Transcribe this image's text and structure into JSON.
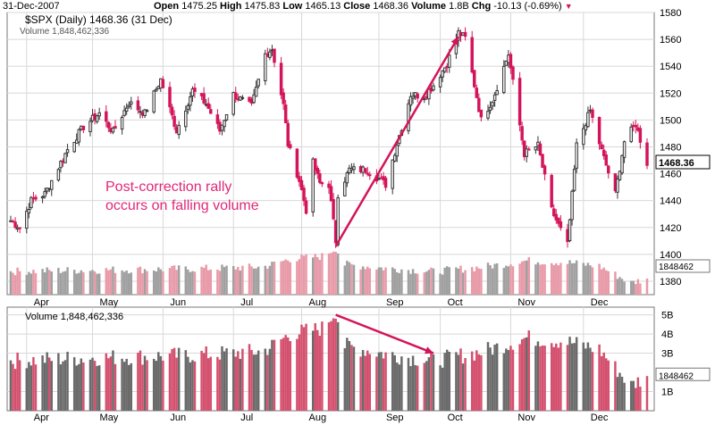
{
  "header": {
    "date": "31-Dec-2007",
    "open_label": "Open",
    "open": "1475.25",
    "high_label": "High",
    "high": "1475.83",
    "low_label": "Low",
    "low": "1465.13",
    "close_label": "Close",
    "close": "1468.36",
    "volume_label": "Volume",
    "volume": "1.8B",
    "chg_label": "Chg",
    "chg": "-10.13 (-0.69%)"
  },
  "colors": {
    "up": "#333333",
    "down": "#d4145a",
    "vol_up": "#a0a0a0",
    "vol_down": "#e89aa8",
    "grid": "#d8d8d8",
    "arrow": "#d4145a",
    "annotation": "#e0287a"
  },
  "chart_data": [
    {
      "type": "candlestick",
      "legend_price": "$SPX (Daily) 1468.36 (31 Dec)",
      "legend_volume": "Volume 1,848,462,336",
      "ylim": [
        1370,
        1580
      ],
      "y_ticks": [
        1380,
        1400,
        1420,
        1440,
        1460,
        1480,
        1500,
        1520,
        1540,
        1560,
        1580
      ],
      "x_month_labels": [
        "Apr",
        "May",
        "Jun",
        "Jul",
        "Aug",
        "Sep",
        "Oct",
        "Nov",
        "Dec"
      ],
      "last_price_label": "1468.36",
      "volume_overlay_label": "1848462",
      "annotation": [
        "Post-correction rally",
        "occurs on falling volume"
      ],
      "arrow": {
        "from": [
          "2007-08-16",
          1406
        ],
        "to": [
          "2007-10-09",
          1562
        ]
      },
      "ohlc_source": "computed in script from close path (approximate)",
      "close_path": [
        [
          "2007-03-26",
          1425
        ],
        [
          "2007-03-30",
          1420
        ],
        [
          "2007-04-04",
          1440
        ],
        [
          "2007-04-10",
          1445
        ],
        [
          "2007-04-20",
          1478
        ],
        [
          "2007-04-27",
          1495
        ],
        [
          "2007-05-04",
          1505
        ],
        [
          "2007-05-10",
          1491
        ],
        [
          "2007-05-17",
          1513
        ],
        [
          "2007-05-24",
          1505
        ],
        [
          "2007-05-31",
          1530
        ],
        [
          "2007-06-07",
          1492
        ],
        [
          "2007-06-14",
          1522
        ],
        [
          "2007-06-20",
          1512
        ],
        [
          "2007-06-26",
          1492
        ],
        [
          "2007-07-02",
          1519
        ],
        [
          "2007-07-10",
          1510
        ],
        [
          "2007-07-16",
          1549
        ],
        [
          "2007-07-19",
          1553
        ],
        [
          "2007-07-24",
          1511
        ],
        [
          "2007-07-26",
          1482
        ],
        [
          "2007-07-31",
          1455
        ],
        [
          "2007-08-03",
          1433
        ],
        [
          "2007-08-06",
          1468
        ],
        [
          "2007-08-09",
          1453
        ],
        [
          "2007-08-13",
          1452
        ],
        [
          "2007-08-16",
          1410
        ],
        [
          "2007-08-17",
          1445
        ],
        [
          "2007-08-22",
          1463
        ],
        [
          "2007-08-30",
          1463
        ],
        [
          "2007-09-07",
          1452
        ],
        [
          "2007-09-18",
          1519
        ],
        [
          "2007-09-24",
          1518
        ],
        [
          "2007-09-28",
          1526
        ],
        [
          "2007-10-04",
          1542
        ],
        [
          "2007-10-09",
          1565
        ],
        [
          "2007-10-12",
          1561
        ],
        [
          "2007-10-19",
          1500
        ],
        [
          "2007-10-24",
          1515
        ],
        [
          "2007-10-31",
          1549
        ],
        [
          "2007-11-07",
          1475
        ],
        [
          "2007-11-13",
          1481
        ],
        [
          "2007-11-19",
          1433
        ],
        [
          "2007-11-26",
          1407
        ],
        [
          "2007-11-30",
          1481
        ],
        [
          "2007-12-06",
          1507
        ],
        [
          "2007-12-11",
          1477
        ],
        [
          "2007-12-17",
          1445
        ],
        [
          "2007-12-21",
          1484
        ],
        [
          "2007-12-26",
          1497
        ],
        [
          "2007-12-31",
          1468
        ]
      ]
    },
    {
      "type": "bar",
      "legend": "Volume 1,848,462,336",
      "y_tick_labels": [
        "5B",
        "4B",
        "3B",
        "1B"
      ],
      "y_ticks_values_billion": [
        5,
        4,
        3,
        1
      ],
      "last_value_label": "1848462",
      "arrow": {
        "from": [
          "2007-08-16",
          5.0
        ],
        "to": [
          "2007-09-28",
          3.0
        ]
      },
      "volume_path_billion": [
        [
          "2007-03-26",
          2.6
        ],
        [
          "2007-04-15",
          2.7
        ],
        [
          "2007-05-15",
          2.8
        ],
        [
          "2007-06-15",
          2.9
        ],
        [
          "2007-07-15",
          3.1
        ],
        [
          "2007-07-27",
          4.0
        ],
        [
          "2007-08-10",
          4.3
        ],
        [
          "2007-08-16",
          5.2
        ],
        [
          "2007-08-20",
          3.4
        ],
        [
          "2007-09-05",
          3.0
        ],
        [
          "2007-09-28",
          2.6
        ],
        [
          "2007-10-20",
          3.1
        ],
        [
          "2007-11-08",
          3.8
        ],
        [
          "2007-11-26",
          3.6
        ],
        [
          "2007-12-10",
          3.2
        ],
        [
          "2007-12-24",
          1.3
        ],
        [
          "2007-12-31",
          1.85
        ]
      ]
    }
  ]
}
